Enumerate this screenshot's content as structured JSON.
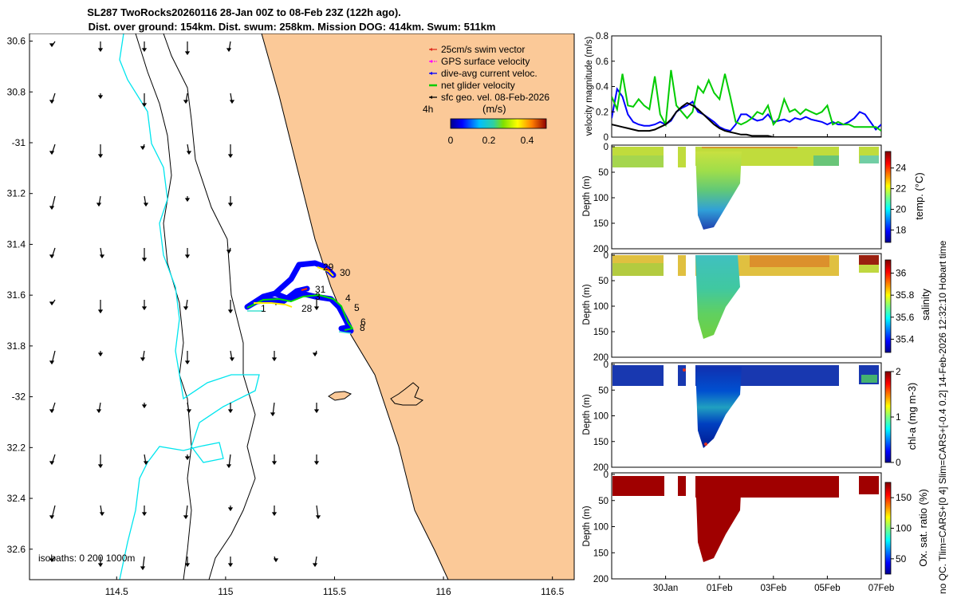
{
  "title": {
    "line1": "SL287 TwoRocks20260116 28-Jan 00Z to 08-Feb 23Z (122h ago).",
    "line2": "Dist. over ground: 154km. Dist. swum: 258km. Mission DOG: 414km. Swum: 511km"
  },
  "chart_data": [
    {
      "type": "map",
      "name": "glider track map",
      "lat_ticks": [
        "30.6",
        "30.8",
        "-31",
        "31.2",
        "31.4",
        "31.6",
        "31.8",
        "-32",
        "32.2",
        "32.4",
        "32.6"
      ],
      "lat_values": [
        -30.6,
        -30.8,
        -31.0,
        -31.2,
        -31.4,
        -31.6,
        -31.8,
        -32.0,
        -32.2,
        -32.4,
        -32.6
      ],
      "lon_ticks": [
        "114.5",
        "115",
        "115.5",
        "116",
        "116.5"
      ],
      "lon_values": [
        114.5,
        115.0,
        115.5,
        116.0,
        116.5
      ],
      "xlim": [
        114.1,
        116.6
      ],
      "ylim": [
        -32.72,
        -30.57
      ],
      "legend": [
        {
          "label": "25cm/s swim vector",
          "color": "#e03020"
        },
        {
          "label": "GPS surface velocity",
          "color": "#ff00ff"
        },
        {
          "label": "dive-avg current veloc.",
          "color": "#0000ff"
        },
        {
          "label": "net glider velocity",
          "color": "#00cc00"
        },
        {
          "label": "sfc geo. vel. 08-Feb-2026",
          "color": "#000000"
        }
      ],
      "arrow_scale_label": "4h",
      "colorbar_label": "(m/s)",
      "colorbar_ticks": [
        "0",
        "0.2",
        "0.4"
      ],
      "colorbar_values": [
        0,
        0.2,
        0.4
      ],
      "colorbar_range": [
        0,
        0.5
      ],
      "isobaths_label": "isobaths: 0   200  1000m",
      "day_labels": [
        "1",
        "28",
        "31",
        "3",
        "4",
        "5",
        "6",
        "8",
        "29",
        "30"
      ]
    },
    {
      "type": "line",
      "name": "velocity magnitude",
      "ylabel": "velocity magnitude (m/s)",
      "yticks": [
        "0",
        "0.2",
        "0.4",
        "0.6",
        "0.8"
      ],
      "ylim": [
        0,
        0.8
      ],
      "x_days": [
        -2.0,
        -1.8,
        -1.6,
        -1.4,
        -1.2,
        -1.0,
        -0.8,
        -0.6,
        -0.4,
        -0.2,
        0.0,
        0.2,
        0.4,
        0.6,
        0.8,
        1.0,
        1.2,
        1.4,
        1.6,
        1.8,
        2.0,
        2.2,
        2.4,
        2.6,
        2.8,
        3.0,
        3.2,
        3.4,
        3.6,
        3.8,
        4.0,
        4.2,
        4.4,
        4.6,
        4.8,
        5.0,
        5.2,
        5.4,
        5.6,
        5.8,
        6.0,
        6.2,
        6.4,
        6.6,
        6.8,
        7.0,
        7.2,
        7.4,
        7.6,
        7.8,
        8.0
      ],
      "series": [
        {
          "name": "dive-avg current veloc.",
          "color": "#0000ff",
          "values": [
            0.15,
            0.38,
            0.32,
            0.18,
            0.12,
            0.1,
            0.09,
            0.09,
            0.1,
            0.12,
            0.1,
            0.13,
            0.2,
            0.23,
            0.25,
            0.28,
            0.2,
            0.18,
            0.15,
            0.12,
            0.08,
            0.06,
            0.05,
            0.1,
            0.18,
            0.18,
            0.15,
            0.13,
            0.14,
            0.18,
            0.12,
            0.13,
            0.14,
            0.12,
            0.15,
            0.14,
            0.16,
            0.14,
            0.13,
            0.12,
            0.1,
            0.12,
            0.1,
            0.1,
            0.12,
            0.15,
            0.2,
            0.18,
            0.12,
            0.06,
            0.1
          ]
        },
        {
          "name": "net glider velocity",
          "color": "#00cc00",
          "values": [
            0.32,
            0.22,
            0.5,
            0.25,
            0.24,
            0.3,
            0.25,
            0.22,
            0.48,
            0.18,
            0.1,
            0.53,
            0.25,
            0.2,
            0.15,
            0.2,
            0.4,
            0.35,
            0.45,
            0.35,
            0.3,
            0.5,
            0.32,
            0.12,
            0.1,
            0.12,
            0.15,
            0.2,
            0.18,
            0.25,
            0.1,
            0.15,
            0.3,
            0.2,
            0.22,
            0.18,
            0.22,
            0.2,
            0.18,
            0.2,
            0.25,
            0.1,
            0.12,
            0.1,
            0.1,
            0.08,
            0.08,
            0.08,
            0.08,
            0.08,
            0.05
          ]
        },
        {
          "name": "sfc geo. vel.",
          "color": "#000000",
          "values": [
            0.1,
            0.09,
            0.08,
            0.07,
            0.06,
            0.05,
            0.05,
            0.05,
            0.06,
            0.08,
            0.1,
            0.14,
            0.2,
            0.24,
            0.27,
            0.25,
            0.22,
            0.18,
            0.14,
            0.1,
            0.07,
            0.05,
            0.04,
            0.03,
            0.02,
            0.02,
            0.01,
            0.01,
            0.01,
            0.01,
            0.0,
            0.0,
            0.0,
            0.0,
            0.0,
            0.0,
            0.0,
            0.0,
            0.0,
            0.0,
            0.0,
            0.0,
            0.0,
            0.0,
            0.0,
            0.0,
            0.0,
            0.0,
            0.0,
            0.0,
            0.0
          ]
        }
      ]
    },
    {
      "type": "heatmap",
      "name": "temperature section",
      "ylabel": "Depth (m)",
      "yticks": [
        "0",
        "50",
        "100",
        "150",
        "200"
      ],
      "ylim": [
        200,
        0
      ],
      "colorbar_label": "temp. (°C)",
      "colorbar_ticks": [
        "18",
        "20",
        "22",
        "24"
      ],
      "colorbar_values": [
        18,
        20,
        22,
        24
      ],
      "colorbar_range": [
        16.8,
        25.6
      ]
    },
    {
      "type": "heatmap",
      "name": "salinity section",
      "ylabel": "Depth (m)",
      "yticks": [
        "0",
        "50",
        "100",
        "150",
        "200"
      ],
      "ylim": [
        200,
        0
      ],
      "colorbar_label": "salinity",
      "colorbar_ticks": [
        "35.4",
        "35.6",
        "35.8",
        "36"
      ],
      "colorbar_values": [
        35.4,
        35.6,
        35.8,
        36.0
      ],
      "colorbar_range": [
        35.28,
        36.12
      ]
    },
    {
      "type": "heatmap",
      "name": "chlorophyll section",
      "ylabel": "Depth (m)",
      "yticks": [
        "0",
        "50",
        "100",
        "150",
        "200"
      ],
      "ylim": [
        200,
        0
      ],
      "colorbar_label": "chl-a (mg m-3)",
      "colorbar_ticks": [
        "0",
        "1",
        "2"
      ],
      "colorbar_values": [
        0,
        1,
        2
      ],
      "colorbar_range": [
        0,
        2
      ]
    },
    {
      "type": "heatmap",
      "name": "oxygen saturation section",
      "ylabel": "Depth (m)",
      "yticks": [
        "0",
        "50",
        "100",
        "150",
        "200"
      ],
      "ylim": [
        200,
        0
      ],
      "colorbar_label": "Ox. sat. ratio (%)",
      "colorbar_ticks": [
        "50",
        "100",
        "150"
      ],
      "colorbar_values": [
        50,
        100,
        150
      ],
      "colorbar_range": [
        25,
        175
      ],
      "xticks": [
        "30Jan",
        "01Feb",
        "03Feb",
        "05Feb",
        "07Feb"
      ],
      "xtick_days": [
        0,
        2,
        4,
        6,
        8
      ]
    }
  ],
  "qc_note": "no QC. Tlim=CARS+[0 4] Slim=CARS+[-0.4 0.2] 14-Feb-2026 12:32:10 Hobart time"
}
